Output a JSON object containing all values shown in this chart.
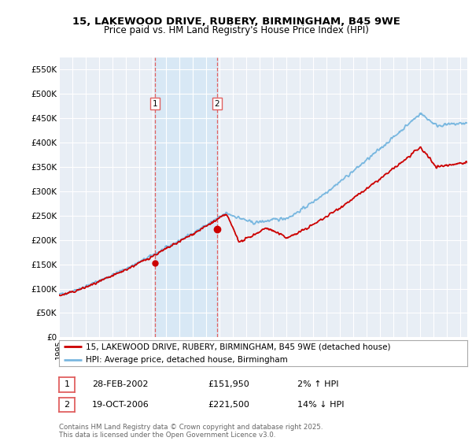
{
  "title_line1": "15, LAKEWOOD DRIVE, RUBERY, BIRMINGHAM, B45 9WE",
  "title_line2": "Price paid vs. HM Land Registry's House Price Index (HPI)",
  "ylim": [
    0,
    575000
  ],
  "yticks": [
    0,
    50000,
    100000,
    150000,
    200000,
    250000,
    300000,
    350000,
    400000,
    450000,
    500000,
    550000
  ],
  "ytick_labels": [
    "£0",
    "£50K",
    "£100K",
    "£150K",
    "£200K",
    "£250K",
    "£300K",
    "£350K",
    "£400K",
    "£450K",
    "£500K",
    "£550K"
  ],
  "background_color": "#ffffff",
  "plot_bg_color": "#e8eef5",
  "grid_color": "#ffffff",
  "hpi_color": "#7ab8e0",
  "price_color": "#cc0000",
  "sale1_date_x": 2002.16,
  "sale1_price": 151950,
  "sale2_date_x": 2006.8,
  "sale2_price": 221500,
  "shade_color": "#d8e8f5",
  "vline_color": "#e06060",
  "legend_line1": "15, LAKEWOOD DRIVE, RUBERY, BIRMINGHAM, B45 9WE (detached house)",
  "legend_line2": "HPI: Average price, detached house, Birmingham",
  "table_row1": [
    "1",
    "28-FEB-2002",
    "£151,950",
    "2% ↑ HPI"
  ],
  "table_row2": [
    "2",
    "19-OCT-2006",
    "£221,500",
    "14% ↓ HPI"
  ],
  "footnote": "Contains HM Land Registry data © Crown copyright and database right 2025.\nThis data is licensed under the Open Government Licence v3.0.",
  "xmin": 1995.0,
  "xmax": 2025.5
}
